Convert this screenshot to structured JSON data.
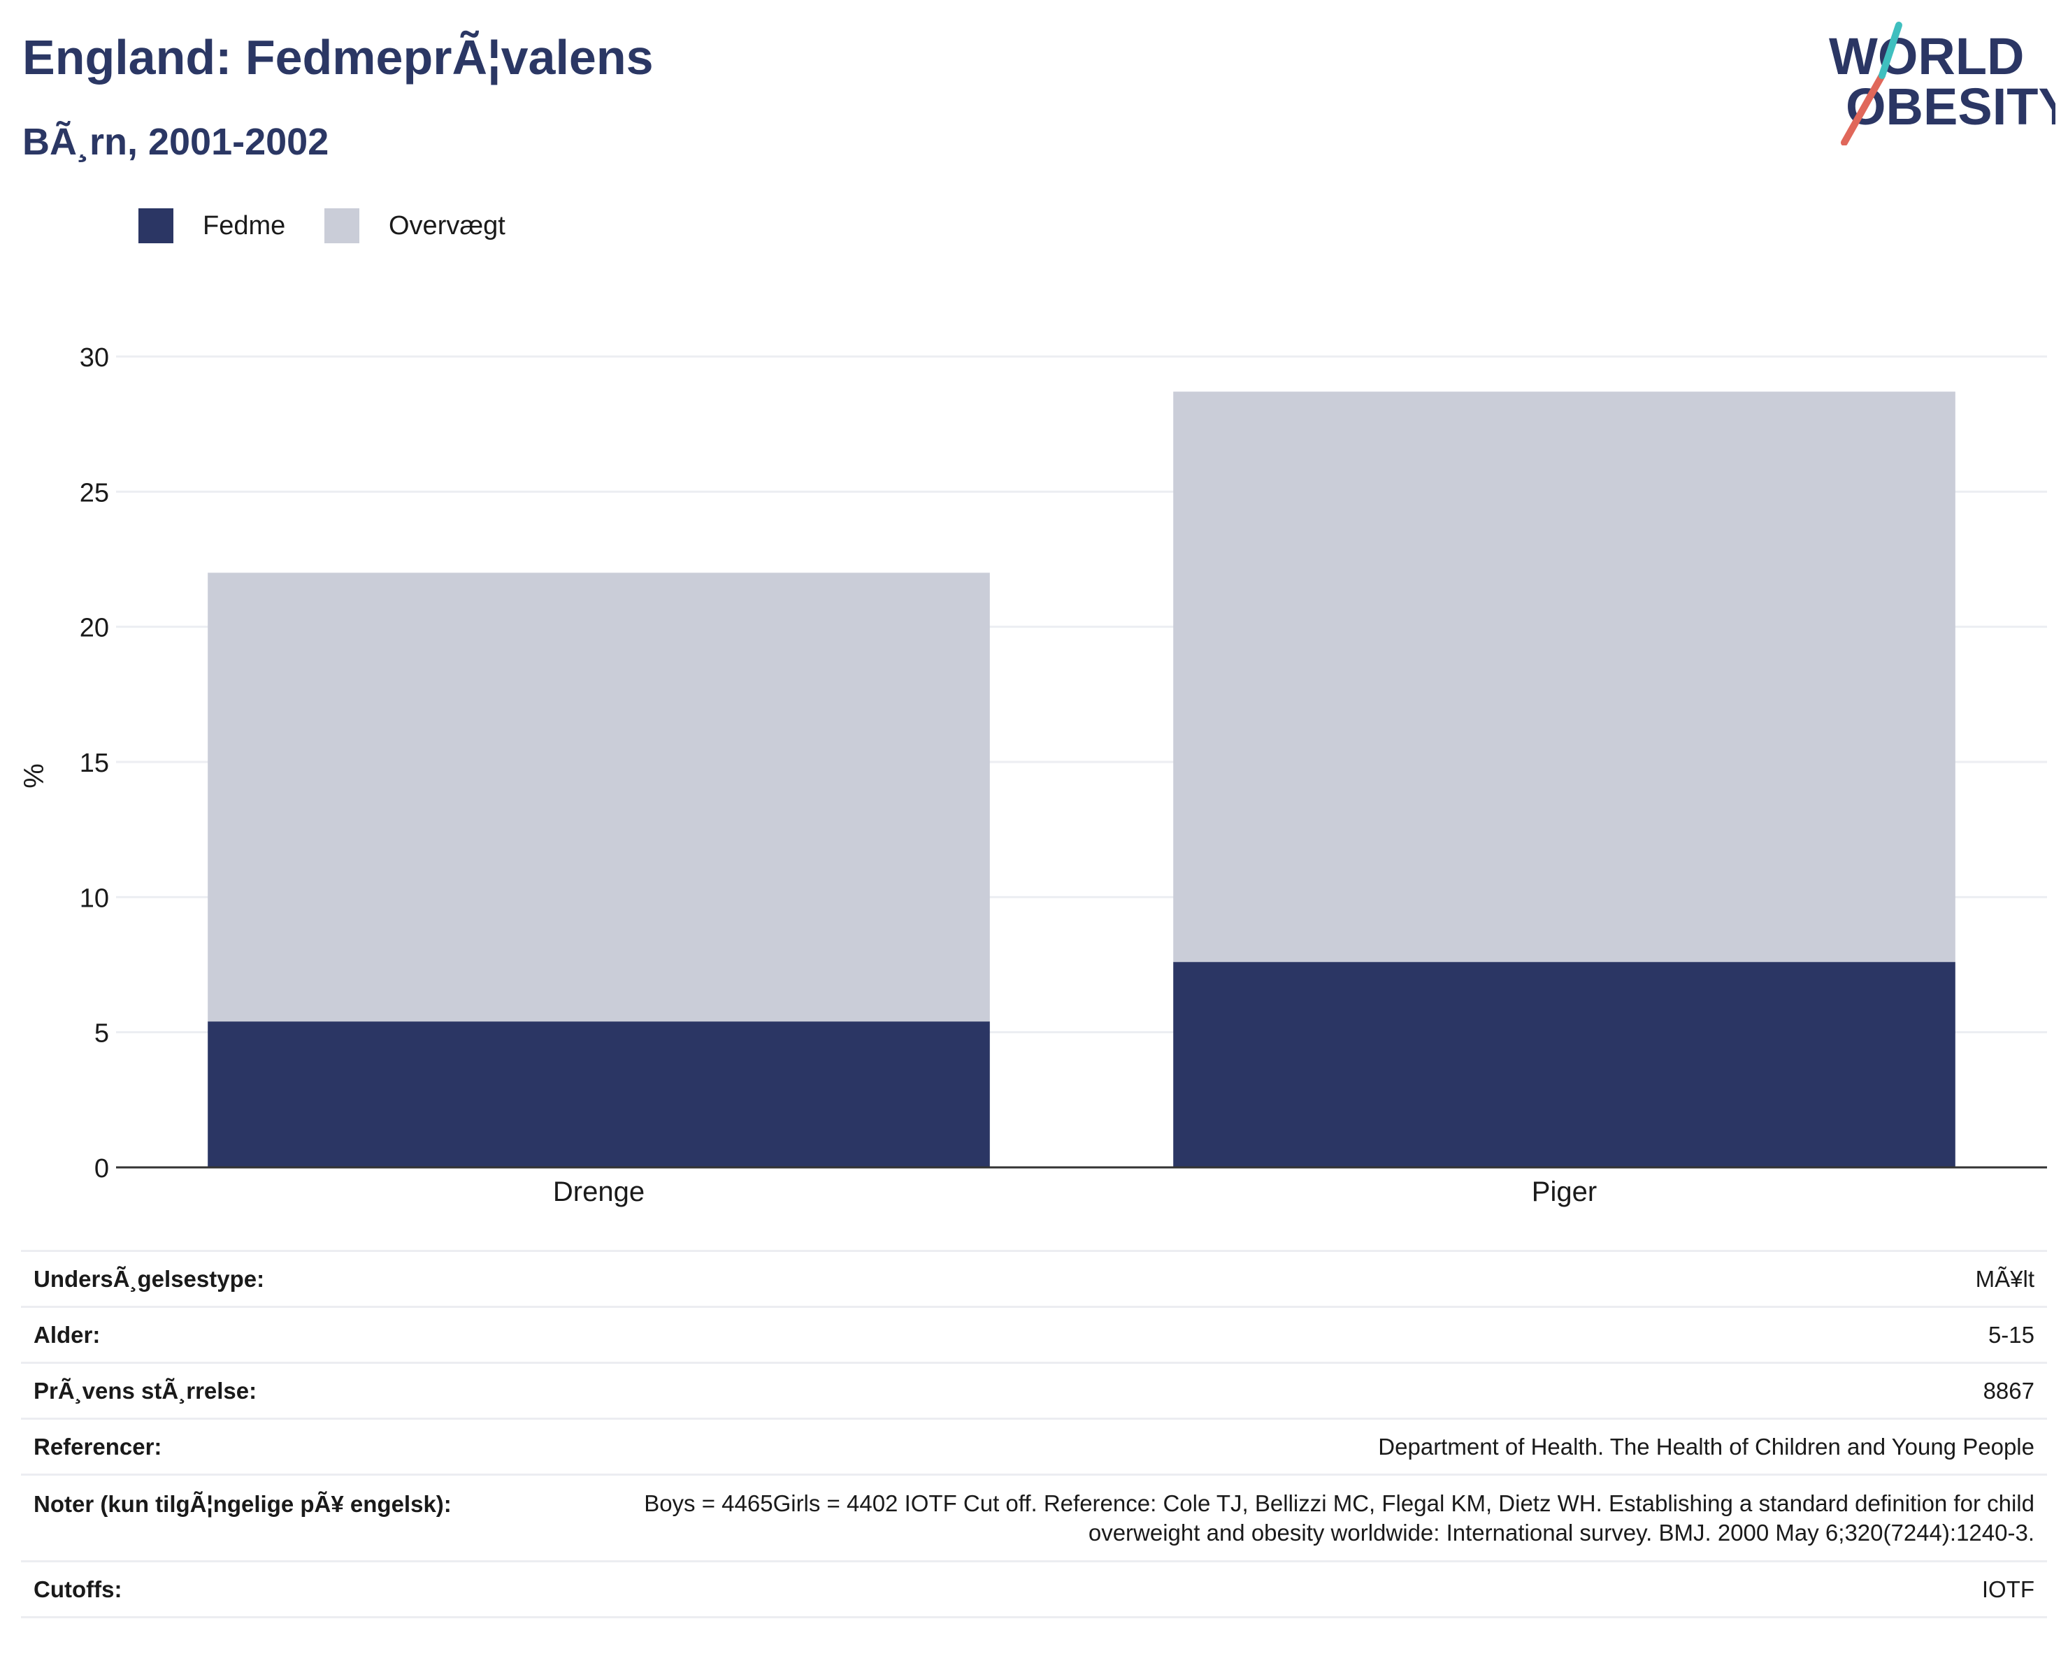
{
  "header": {
    "title": "England: FedmeprÃ¦valens",
    "subtitle": "BÃ¸rn, 2001-2002"
  },
  "logo": {
    "line1": "WORLD",
    "line2": "OBESITY"
  },
  "legend": [
    {
      "label": "Fedme",
      "color": "#2b3664"
    },
    {
      "label": "Overvægt",
      "color": "#cacdd8"
    }
  ],
  "chart_data": {
    "type": "bar",
    "stacked": true,
    "categories": [
      "Drenge",
      "Piger"
    ],
    "series": [
      {
        "name": "Fedme",
        "values": [
          5.4,
          7.6
        ],
        "color": "#2b3664"
      },
      {
        "name": "Overvægt",
        "values": [
          16.6,
          21.1
        ],
        "color": "#cacdd8"
      }
    ],
    "title": "England: FedmeprÃ¦valens",
    "subtitle": "BÃ¸rn, 2001-2002",
    "xlabel": "",
    "ylabel": "%",
    "ylim": [
      0,
      30
    ],
    "yticks": [
      0,
      5,
      10,
      15,
      20,
      25,
      30
    ],
    "grid": true,
    "legend_position": "top-left"
  },
  "meta": [
    {
      "key": "UndersÃ¸gelsestype:",
      "value": "MÃ¥lt"
    },
    {
      "key": "Alder:",
      "value": "5-15"
    },
    {
      "key": "PrÃ¸vens stÃ¸rrelse:",
      "value": "8867"
    },
    {
      "key": "Referencer:",
      "value": "Department of Health. The Health of Children and Young People"
    },
    {
      "key": "Noter (kun tilgÃ¦ngelige pÃ¥ engelsk):",
      "value": "Boys = 4465Girls = 4402 IOTF Cut off. Reference: Cole TJ, Bellizzi MC, Flegal KM, Dietz WH. Establishing a standard definition for child overweight and obesity worldwide: International survey. BMJ. 2000 May 6;320(7244):1240-3."
    },
    {
      "key": "Cutoffs:",
      "value": "IOTF"
    }
  ]
}
